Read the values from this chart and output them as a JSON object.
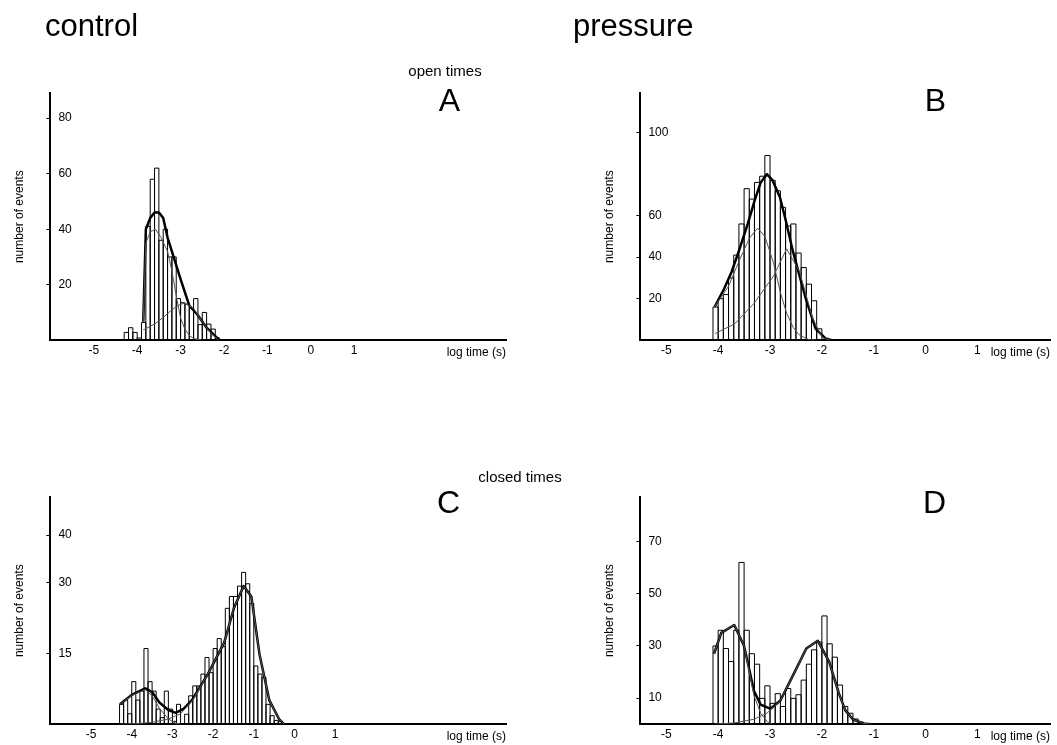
{
  "chart_data": [
    {
      "type": "histogram",
      "title": "control",
      "subtitle": "open times",
      "ylabel": "number of events",
      "xlabel": "log time (s)",
      "annotations": [
        "A"
      ],
      "color": "#000000",
      "bins": [
        -4.3,
        -4.2,
        -4.1,
        -4.0,
        -3.9,
        -3.8,
        -3.7,
        -3.6,
        -3.5,
        -3.4,
        -3.3,
        -3.2,
        -3.1,
        -3.0,
        -2.9,
        -2.8,
        -2.7,
        -2.6,
        -2.5,
        -2.4,
        -2.3,
        -2.2,
        -2.1
      ],
      "values": [
        2.8,
        4.5,
        2.8,
        0.8,
        6.4,
        41,
        58,
        62,
        36,
        40,
        30,
        30,
        15,
        13.5,
        13,
        11.5,
        15,
        5.6,
        10,
        5.8,
        4,
        0.8
      ],
      "series": [
        {
          "type": "line",
          "color": "#000000",
          "x": [
            -3.86,
            -3.8,
            -3.7,
            -3.6,
            -3.5,
            -3.4,
            -3.3,
            -3.2,
            -3.0,
            -2.8,
            -2.6,
            -2.4,
            -2.2,
            -2.1
          ],
          "values": [
            6.7,
            40,
            44,
            46,
            46,
            44,
            37,
            32,
            22,
            12.5,
            9,
            4.5,
            1.5,
            0
          ]
        },
        {
          "type": "line",
          "color": "#555555",
          "x": [
            -3.86,
            -3.8,
            -3.7,
            -3.58,
            -3.45,
            -3.3,
            -3.2,
            -3.1,
            -3.0,
            -2.9,
            -2.8,
            -2.7,
            -2.5
          ],
          "values": [
            6.7,
            35,
            39,
            40,
            37,
            32,
            25,
            16,
            8,
            4,
            1.7,
            0.6,
            0
          ]
        },
        {
          "type": "line",
          "color": "#555555",
          "x": [
            -3.86,
            -3.6,
            -3.4,
            -3.2,
            -3.0,
            -2.9,
            -2.7,
            -2.5,
            -2.3,
            -2.13
          ],
          "values": [
            3.7,
            5.8,
            8.2,
            11,
            13,
            13.3,
            11.5,
            6.7,
            2.5,
            0
          ]
        }
      ],
      "xlim": [
        -6,
        4.5
      ],
      "xticks": [
        -5,
        -4,
        -3,
        -2,
        -1,
        0,
        1
      ],
      "ylim": [
        0,
        89
      ],
      "yticks": [
        20,
        40,
        60,
        80
      ]
    },
    {
      "type": "histogram",
      "title": "pressure",
      "ylabel": "number of events",
      "xlabel": "log time (s)",
      "annotations": [
        "B"
      ],
      "color": "#000000",
      "bins": [
        -4.1,
        -4.0,
        -3.9,
        -3.8,
        -3.7,
        -3.6,
        -3.5,
        -3.4,
        -3.3,
        -3.2,
        -3.1,
        -3.0,
        -2.9,
        -2.8,
        -2.7,
        -2.6,
        -2.5,
        -2.4,
        -2.3,
        -2.2,
        -2.1,
        -2.0
      ],
      "values": [
        16,
        20,
        22,
        30,
        41,
        56,
        73,
        68,
        76,
        79,
        89,
        77,
        72,
        64,
        55,
        56,
        42,
        35,
        27,
        19,
        5.5
      ],
      "series": [
        {
          "type": "line",
          "color": "#000000",
          "x": [
            -4.07,
            -3.9,
            -3.74,
            -3.6,
            -3.43,
            -3.3,
            -3.18,
            -3.06,
            -2.95,
            -2.81,
            -2.7,
            -2.56,
            -2.43,
            -2.31,
            -2.12,
            -1.93,
            -1.81
          ],
          "values": [
            16,
            24,
            33,
            43,
            56,
            67,
            76,
            80,
            77,
            69,
            58,
            43,
            31,
            20,
            5.5,
            0.9,
            0
          ]
        },
        {
          "type": "line",
          "color": "#555555",
          "x": [
            -4.07,
            -3.8,
            -3.6,
            -3.4,
            -3.24,
            -3.1,
            -2.93,
            -2.8,
            -2.68,
            -2.55,
            -2.43,
            -2.24,
            -2.12
          ],
          "values": [
            16,
            26,
            38,
            49,
            54,
            50,
            37,
            23,
            13,
            6,
            2.4,
            0.2,
            0
          ]
        },
        {
          "type": "line",
          "color": "#555555",
          "x": [
            -4.06,
            -3.68,
            -3.31,
            -2.93,
            -2.68,
            -2.43,
            -2.18,
            -1.99,
            -1.84
          ],
          "values": [
            3.2,
            7.9,
            17.7,
            31,
            44,
            33,
            10.7,
            1.2,
            0
          ]
        }
      ],
      "xlim": [
        -5.5,
        2.4
      ],
      "xticks": [
        -5,
        -4,
        -3,
        -2,
        -1,
        0,
        1
      ],
      "ylim": [
        0,
        119
      ],
      "yticks": [
        20,
        40,
        60,
        100
      ]
    },
    {
      "type": "histogram",
      "subtitle": "closed times",
      "ylabel": "number of events",
      "xlabel": "log time (s)",
      "annotations": [
        "C"
      ],
      "color": "#000000",
      "bins": [
        -4.3,
        -4.2,
        -4.1,
        -4.0,
        -3.9,
        -3.8,
        -3.7,
        -3.6,
        -3.5,
        -3.4,
        -3.3,
        -3.2,
        -3.1,
        -3.0,
        -2.9,
        -2.8,
        -2.7,
        -2.6,
        -2.5,
        -2.4,
        -2.3,
        -2.2,
        -2.1,
        -2.0,
        -1.9,
        -1.8,
        -1.7,
        -1.6,
        -1.5,
        -1.4,
        -1.3,
        -1.2,
        -1.1,
        -1.0,
        -0.9,
        -0.8,
        -0.7,
        -0.6,
        -0.5,
        -0.4,
        -0.3
      ],
      "values": [
        4.2,
        5.1,
        2.2,
        9,
        5.1,
        7,
        16,
        9,
        7,
        3.2,
        1.4,
        7,
        3.2,
        0.6,
        4.2,
        0,
        2.1,
        6,
        8.1,
        8.1,
        10.6,
        14.1,
        10.9,
        16,
        18.1,
        16.4,
        24.5,
        27,
        27,
        29.2,
        32.1,
        29.7,
        25.5,
        12.3,
        10.6,
        9.9,
        4.2,
        1.8,
        0.8,
        0.6
      ],
      "series": [
        {
          "type": "line",
          "color": "#000000",
          "x": [
            -4.29,
            -4.0,
            -3.67,
            -3.5,
            -3.32,
            -3.1,
            -2.92,
            -2.72,
            -2.52,
            -2.13,
            -1.73,
            -1.49,
            -1.25,
            -1.06,
            -0.86,
            -0.62,
            -0.38,
            -0.26
          ],
          "values": [
            4.2,
            6.2,
            7.6,
            6.8,
            4.6,
            3.0,
            2.4,
            3.3,
            5.1,
            10.6,
            17.2,
            24.5,
            29.2,
            27,
            14.8,
            5.1,
            1.1,
            0
          ]
        },
        {
          "type": "line",
          "color": "#555555",
          "x": [
            -4.29,
            -4.0,
            -3.67,
            -3.5,
            -3.32,
            -3.1,
            -2.92,
            -2.8
          ],
          "values": [
            4.2,
            6.1,
            7.3,
            6.0,
            3.4,
            1.1,
            0.2,
            0
          ]
        },
        {
          "type": "line",
          "color": "#555555",
          "x": [
            -4.29,
            -3.9,
            -3.5,
            -3.1,
            -2.8,
            -2.5,
            -2.13,
            -1.73,
            -1.49,
            -1.25,
            -1.06,
            -0.86,
            -0.62,
            -0.38,
            -0.26
          ],
          "values": [
            0,
            0.1,
            0.4,
            1.1,
            2.2,
            5.1,
            10.6,
            17.2,
            24.5,
            29.2,
            27,
            14.8,
            5.1,
            1.1,
            0
          ]
        }
      ],
      "xlim": [
        -6,
        5.2
      ],
      "xticks": [
        -5,
        -4,
        -3,
        -2,
        -1,
        0,
        1
      ],
      "ylim": [
        0,
        48
      ],
      "yticks": [
        15,
        30,
        40
      ]
    },
    {
      "type": "histogram",
      "ylabel": "number of events",
      "xlabel": "log time (s)",
      "annotations": [
        "D"
      ],
      "color": "#000000",
      "bins": [
        -4.1,
        -4.0,
        -3.9,
        -3.8,
        -3.7,
        -3.6,
        -3.5,
        -3.4,
        -3.3,
        -3.2,
        -3.1,
        -3.0,
        -2.9,
        -2.8,
        -2.7,
        -2.6,
        -2.5,
        -2.4,
        -2.3,
        -2.2,
        -2.1,
        -2.0,
        -1.9,
        -1.8,
        -1.7,
        -1.6,
        -1.5,
        -1.4,
        -1.3,
        -1.2
      ],
      "values": [
        30,
        36,
        29,
        24,
        36,
        62,
        36,
        27,
        23,
        9.9,
        14.7,
        8,
        11.7,
        6.8,
        13.7,
        9.9,
        11.3,
        16.9,
        23,
        28.5,
        31.5,
        41.5,
        30.8,
        25.7,
        15,
        6.8,
        4.2,
        2,
        0.8
      ],
      "series": [
        {
          "type": "line",
          "color": "#000000",
          "x": [
            -4.08,
            -3.94,
            -3.69,
            -3.5,
            -3.31,
            -3.18,
            -2.99,
            -2.8,
            -2.55,
            -2.3,
            -2.08,
            -1.86,
            -1.67,
            -1.55,
            -1.4,
            -1.2,
            -1.05
          ],
          "values": [
            27,
            35,
            38,
            30,
            12.7,
            7.5,
            5.9,
            9.1,
            19,
            29,
            32,
            24,
            11.7,
            5.4,
            1.8,
            0.3,
            0
          ]
        },
        {
          "type": "line",
          "color": "#555555",
          "x": [
            -4.08,
            -3.94,
            -3.69,
            -3.5,
            -3.31,
            -3.18,
            -3.05,
            -2.95
          ],
          "values": [
            27,
            35,
            38,
            30,
            11,
            4.2,
            0.9,
            0
          ]
        },
        {
          "type": "line",
          "color": "#555555",
          "x": [
            -4.06,
            -3.69,
            -3.31,
            -3.06,
            -2.8,
            -2.55,
            -2.3,
            -2.08,
            -1.86,
            -1.67,
            -1.55,
            -1.4,
            -1.2,
            -1.05
          ],
          "values": [
            0,
            0.5,
            1.9,
            4.2,
            9.1,
            19,
            29,
            32,
            24,
            11.7,
            5.4,
            1.8,
            0.3,
            0
          ]
        }
      ],
      "xlim": [
        -5.5,
        2.4
      ],
      "xticks": [
        -5,
        -4,
        -3,
        -2,
        -1,
        0,
        1
      ],
      "ylim": [
        0,
        87
      ],
      "yticks": [
        10,
        30,
        50,
        70
      ]
    }
  ]
}
